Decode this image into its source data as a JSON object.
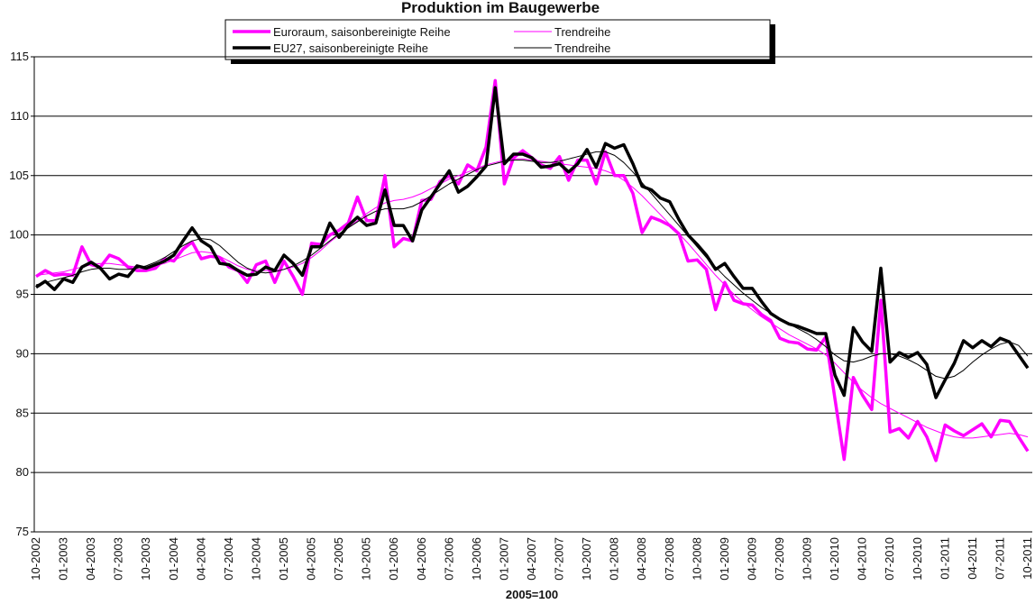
{
  "chart_data": {
    "type": "line",
    "title": "Produktion im Baugewerbe",
    "xlabel": "2005=100",
    "categories": [
      "10-2002",
      null,
      null,
      "01-2003",
      null,
      null,
      "04-2003",
      null,
      null,
      "07-2003",
      null,
      null,
      "10-2003",
      null,
      null,
      "01-2004",
      null,
      null,
      "04-2004",
      null,
      null,
      "07-2004",
      null,
      null,
      "10-2004",
      null,
      null,
      "01-2005",
      null,
      null,
      "04-2005",
      null,
      null,
      "07-2005",
      null,
      null,
      "10-2005",
      null,
      null,
      "01-2006",
      null,
      null,
      "04-2006",
      null,
      null,
      "07-2006",
      null,
      null,
      "10-2006",
      null,
      null,
      "01-2007",
      null,
      null,
      "04-2007",
      null,
      null,
      "07-2007",
      null,
      null,
      "10-2007",
      null,
      null,
      "01-2008",
      null,
      null,
      "04-2008",
      null,
      null,
      "07-2008",
      null,
      null,
      "10-2008",
      null,
      null,
      "01-2009",
      null,
      null,
      "04-2009",
      null,
      null,
      "07-2009",
      null,
      null,
      "10-2009",
      null,
      null,
      "01-2010",
      null,
      null,
      "04-2010",
      null,
      null,
      "07-2010",
      null,
      null,
      "10-2010",
      null,
      null,
      "01-2011",
      null,
      null,
      "04-2011",
      null,
      null,
      "07-2011",
      null,
      null,
      "10-2011"
    ],
    "series": [
      {
        "name": "Euroraum, saisonbereinigte Reihe",
        "color": "#ff00ff",
        "values": [
          96.5,
          97,
          96.6,
          96.7,
          96.6,
          99.0,
          97.5,
          97.3,
          98.3,
          98.0,
          97.3,
          97.0,
          97.0,
          97.2,
          98.0,
          97.8,
          98.8,
          99.4,
          98.0,
          98.2,
          98.1,
          97.3,
          97.0,
          96.0,
          97.5,
          97.8,
          96.0,
          97.8,
          96.5,
          95.0,
          99.3,
          99.2,
          100.0,
          100.4,
          101.0,
          103.2,
          101.2,
          101.2,
          105.0,
          99.0,
          99.7,
          99.5,
          102.9,
          103.0,
          104.5,
          105.0,
          104.3,
          105.9,
          105.4,
          107.4,
          113.0,
          104.3,
          106.5,
          107.1,
          106.5,
          105.9,
          105.6,
          106.6,
          104.6,
          106.3,
          106.3,
          104.3,
          107.0,
          105.0,
          105.0,
          103.5,
          100.2,
          101.5,
          101.2,
          100.8,
          100.1,
          97.8,
          97.9,
          97.1,
          93.7,
          96.0,
          94.5,
          94.2,
          94.1,
          93.3,
          92.8,
          91.3,
          91.0,
          90.9,
          90.4,
          90.3,
          91.4,
          86.2,
          81.1,
          88.0,
          86.5,
          85.3,
          94.5,
          83.4,
          83.7,
          82.9,
          84.3,
          83.0,
          81.0,
          84.0,
          83.5,
          83.1,
          83.6,
          84.1,
          83.0,
          84.4,
          84.3,
          83.0,
          81.8
        ]
      },
      {
        "name": "Trendreihe",
        "color": "#ff00ff",
        "values": [
          96.6,
          96.7,
          96.8,
          96.9,
          97.1,
          97.3,
          97.5,
          97.6,
          97.6,
          97.5,
          97.4,
          97.3,
          97.3,
          97.4,
          97.6,
          97.9,
          98.2,
          98.5,
          98.6,
          98.5,
          98.2,
          97.8,
          97.4,
          97.1,
          97.0,
          97.0,
          97.0,
          97.1,
          97.3,
          97.6,
          98.1,
          98.7,
          99.4,
          100.0,
          100.6,
          101.2,
          101.8,
          102.3,
          102.7,
          102.9,
          103.0,
          103.2,
          103.5,
          103.9,
          104.3,
          104.7,
          105.0,
          105.3,
          105.6,
          105.9,
          106.1,
          106.3,
          106.4,
          106.4,
          106.3,
          106.2,
          106.1,
          106.0,
          105.9,
          105.8,
          105.7,
          105.6,
          105.4,
          105.1,
          104.6,
          104.0,
          103.3,
          102.5,
          101.7,
          100.9,
          100.1,
          99.3,
          98.4,
          97.5,
          96.6,
          95.8,
          95.0,
          94.3,
          93.7,
          93.1,
          92.6,
          92.1,
          91.6,
          91.2,
          90.8,
          90.4,
          89.9,
          89.2,
          88.4,
          87.6,
          86.9,
          86.3,
          85.8,
          85.4,
          85.0,
          84.6,
          84.2,
          83.8,
          83.5,
          83.2,
          83.0,
          82.9,
          82.9,
          83.0,
          83.1,
          83.2,
          83.3,
          83.2,
          83.0
        ]
      },
      {
        "name": "EU27, saisonbereinigte Reihe",
        "color": "#000000",
        "values": [
          95.6,
          96.1,
          95.4,
          96.3,
          96.0,
          97.3,
          97.7,
          97.2,
          96.3,
          96.7,
          96.5,
          97.4,
          97.2,
          97.5,
          97.8,
          98.3,
          99.5,
          100.6,
          99.5,
          99.0,
          97.6,
          97.5,
          97.0,
          96.6,
          96.7,
          97.3,
          97.0,
          98.3,
          97.6,
          96.6,
          99.0,
          99.0,
          101.0,
          99.8,
          100.8,
          101.5,
          100.8,
          101.0,
          103.8,
          100.8,
          100.8,
          99.5,
          102.1,
          103.2,
          104.3,
          105.4,
          103.6,
          104.1,
          104.9,
          105.8,
          112.4,
          106.0,
          106.8,
          106.8,
          106.5,
          105.7,
          105.8,
          106.0,
          105.3,
          106.0,
          107.2,
          105.7,
          107.7,
          107.3,
          107.6,
          106.0,
          104.1,
          103.8,
          103.1,
          102.8,
          101.3,
          100.0,
          99.2,
          98.3,
          97.1,
          97.6,
          96.5,
          95.5,
          95.5,
          94.4,
          93.4,
          92.9,
          92.5,
          92.3,
          92.0,
          91.7,
          91.7,
          88.2,
          86.5,
          92.2,
          91.0,
          90.2,
          97.2,
          89.3,
          90.1,
          89.7,
          90.1,
          89.1,
          86.3,
          87.8,
          89.2,
          91.1,
          90.5,
          91.1,
          90.6,
          91.3,
          91.0,
          89.9,
          88.8
        ]
      },
      {
        "name": "Trendreihe",
        "color": "#000000",
        "values": [
          95.8,
          96.0,
          96.2,
          96.4,
          96.6,
          96.9,
          97.1,
          97.2,
          97.2,
          97.1,
          97.1,
          97.2,
          97.4,
          97.7,
          98.1,
          98.6,
          99.1,
          99.5,
          99.7,
          99.6,
          99.1,
          98.4,
          97.7,
          97.2,
          96.9,
          96.8,
          96.9,
          97.1,
          97.4,
          97.8,
          98.3,
          98.9,
          99.5,
          100.1,
          100.6,
          101.1,
          101.6,
          102.0,
          102.2,
          102.2,
          102.2,
          102.4,
          102.8,
          103.3,
          103.8,
          104.3,
          104.7,
          105.1,
          105.5,
          105.8,
          106.0,
          106.2,
          106.3,
          106.3,
          106.2,
          106.1,
          106.1,
          106.2,
          106.4,
          106.6,
          106.8,
          107.0,
          107.0,
          106.7,
          106.1,
          105.3,
          104.4,
          103.5,
          102.6,
          101.7,
          100.8,
          99.9,
          99.0,
          98.1,
          97.3,
          96.5,
          95.8,
          95.1,
          94.5,
          93.9,
          93.4,
          92.9,
          92.5,
          92.1,
          91.7,
          91.2,
          90.6,
          89.9,
          89.4,
          89.3,
          89.5,
          89.8,
          90.0,
          90.0,
          89.8,
          89.5,
          89.1,
          88.6,
          88.1,
          87.9,
          88.1,
          88.6,
          89.3,
          89.9,
          90.4,
          90.8,
          91.0,
          90.7,
          89.8
        ]
      }
    ],
    "ylim": [
      75,
      115
    ],
    "yticks": [
      75,
      80,
      85,
      90,
      95,
      100,
      105,
      110,
      115
    ],
    "grid": true,
    "legend": "top"
  }
}
